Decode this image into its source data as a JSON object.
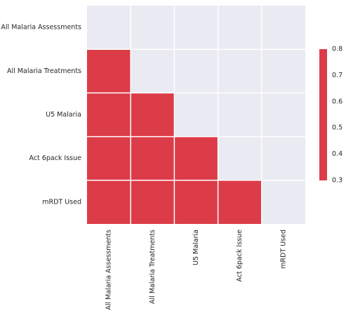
{
  "chart_data": {
    "type": "heatmap",
    "title": "",
    "xlabel": "",
    "ylabel": "",
    "rows": [
      "All Malaria Assessments",
      "All Malaria Treatments",
      "U5 Malaria",
      "Act 6pack Issue",
      "mRDT Used"
    ],
    "columns": [
      "All Malaria Assessments",
      "All Malaria Treatments",
      "U5 Malaria",
      "Act 6pack Issue",
      "mRDT Used"
    ],
    "mask": "upper-triangle-including-diagonal",
    "values": [
      [
        null,
        null,
        null,
        null,
        null
      ],
      [
        1.0,
        null,
        null,
        null,
        null
      ],
      [
        1.0,
        1.0,
        null,
        null,
        null
      ],
      [
        1.0,
        1.0,
        1.0,
        null,
        null
      ],
      [
        1.0,
        1.0,
        1.0,
        1.0,
        null
      ]
    ],
    "colorbar": {
      "range": [
        0.3,
        0.8
      ],
      "ticks": [
        "0.3",
        "0.4",
        "0.5",
        "0.6",
        "0.7",
        "0.8"
      ],
      "placement": "right"
    },
    "colors": {
      "cell": "#dc3c48",
      "masked_background": "#eaeaf2",
      "grid_line": "#ffffff",
      "text": "#262626"
    }
  }
}
